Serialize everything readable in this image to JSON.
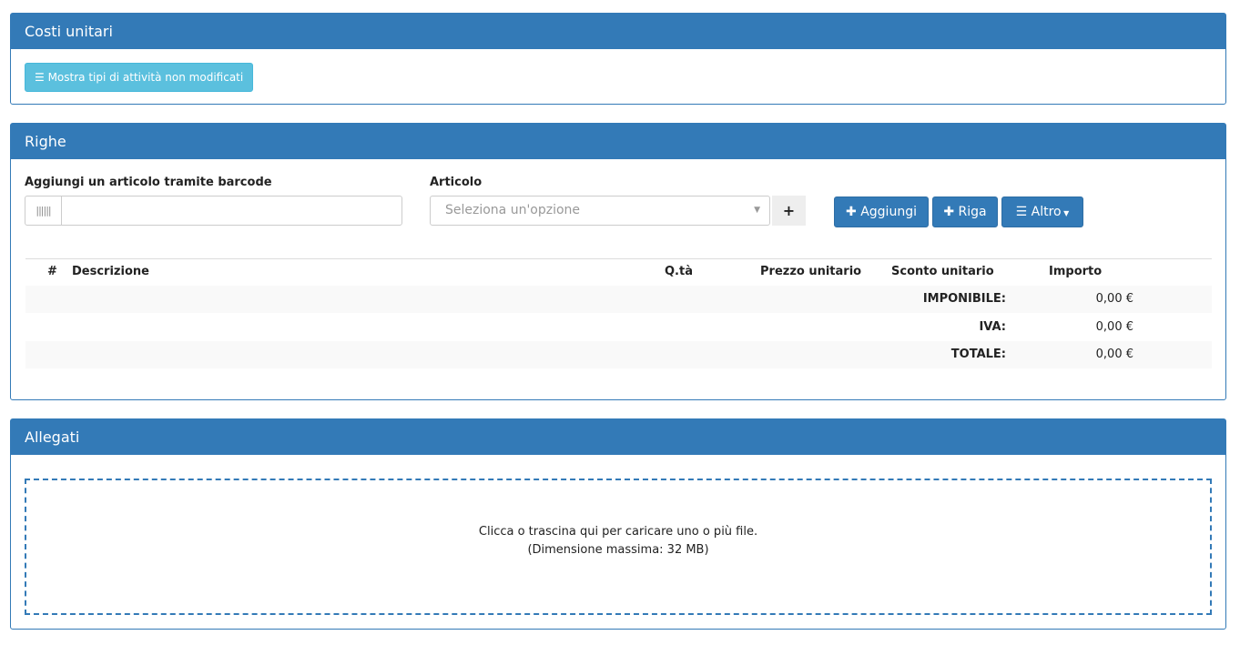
{
  "costi": {
    "title": "Costi unitari",
    "show_button": "Mostra tipi di attività non modificati",
    "show_icon": "list-icon"
  },
  "righe": {
    "title": "Righe",
    "barcode_label": "Aggiungi un articolo tramite barcode",
    "barcode_value": "",
    "barcode_icon": "barcode-icon",
    "articolo_label": "Articolo",
    "articolo_placeholder": "Seleziona un'opzione",
    "plus": "+",
    "add_label": "Aggiungi",
    "riga_label": "Riga",
    "altro_label": "Altro",
    "columns": [
      "#",
      "Descrizione",
      "Q.tà",
      "Prezzo unitario",
      "Sconto unitario",
      "Importo"
    ],
    "totals": [
      {
        "label": "IMPONIBILE:",
        "value": "0,00 €"
      },
      {
        "label": "IVA:",
        "value": "0,00 €"
      },
      {
        "label": "TOTALE:",
        "value": "0,00 €"
      }
    ]
  },
  "allegati": {
    "title": "Allegati",
    "drop_line1": "Clicca o trascina qui per caricare uno o più file.",
    "drop_line2": "(Dimensione massima: 32 MB)"
  },
  "colors": {
    "primary": "#337ab7",
    "info": "#5bc0de"
  }
}
